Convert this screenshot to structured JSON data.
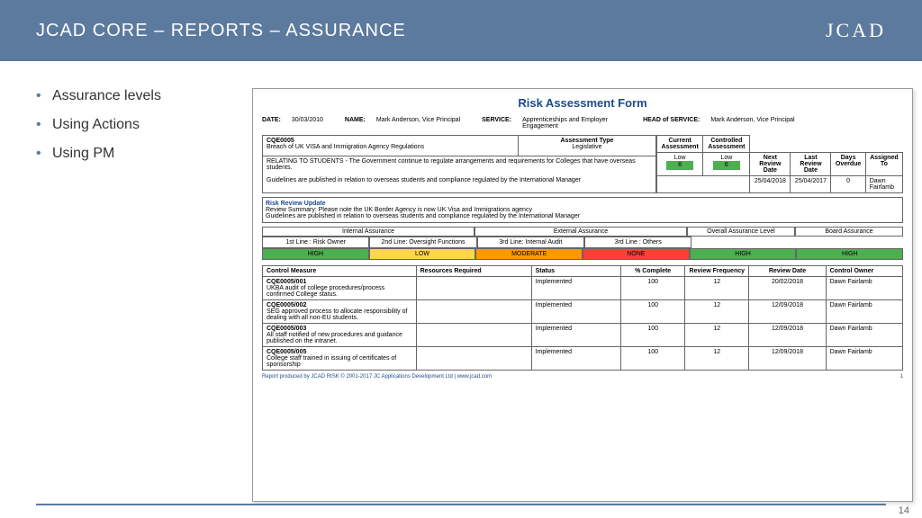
{
  "header": {
    "title": "JCAD CORE – REPORTS – ASSURANCE",
    "logo": "JCAD"
  },
  "bullets": [
    "Assurance levels",
    "Using Actions",
    "Using PM"
  ],
  "form": {
    "title": "Risk Assessment Form",
    "meta": {
      "date_label": "DATE:",
      "date": "30/03/2010",
      "name_label": "NAME:",
      "name": "Mark Anderson, Vice Principal",
      "service_label": "SERVICE:",
      "service": "Apprenticeships and Employer Engagement",
      "head_label": "HEAD of SERVICE:",
      "head": "Mark Anderson, Vice Principal"
    },
    "risk": {
      "code": "CQE0005",
      "desc": "Breach of UK VISA and Immigration Agency Regulations",
      "assessment_type_label": "Assessment Type",
      "assessment_type": "Legislative",
      "relating": "RELATING TO STUDENTS - The Government continue to regulate arrangements and requirements for Colleges that have overseas students.",
      "guidelines": "Guidelines are published in relation to overseas students and compliance regulated by the International Manager",
      "current_label": "Current Assessment",
      "current_val": "Low",
      "current_rag": "6",
      "controlled_label": "Controlled Assessment",
      "controlled_val": "Low",
      "controlled_rag": "6",
      "next_review_label": "Next Review Date",
      "next_review": "25/04/2018",
      "last_review_label": "Last Review Date",
      "last_review": "25/04/2017",
      "days_overdue_label": "Days Overdue",
      "days_overdue": "0",
      "assigned_label": "Assigned To",
      "assigned": "Dawn Fairlamb"
    },
    "review_update": {
      "header": "Risk Review Update",
      "line1": "Review Summary: Please note the UK Border Agency is now UK Visa and Immigrations agency",
      "line2": "Guidelines are published in relation to overseas students and compliance regulated by the International Manager"
    },
    "assurance": {
      "internal_label": "Internal Assurance",
      "external_label": "External Assurance",
      "overall_label": "Overall Assurance Level",
      "board_label": "Board Assurance",
      "lines": {
        "l1_label": "1st Line : Risk Owner",
        "l1_val": "HIGH",
        "l1_color": "green",
        "l2_label": "2nd Line: Oversight Functions",
        "l2_val": "LOW",
        "l2_color": "yellow",
        "l3_label": "3rd Line: Internal Audit",
        "l3_val": "MODERATE",
        "l3_color": "orange",
        "l4_label": "3rd Line : Others",
        "l4_val": "NONE",
        "l4_color": "red",
        "overall_val": "HIGH",
        "overall_color": "green",
        "board_val": "HIGH",
        "board_color": "green"
      }
    },
    "controls": {
      "headers": [
        "Control Measure",
        "Resources Required",
        "Status",
        "% Complete",
        "Review Frequency",
        "Review Date",
        "Control Owner"
      ],
      "rows": [
        {
          "code": "CQE0005/001",
          "desc": "UKBA audit of college procedures/process confirmed College status.",
          "res": "",
          "status": "Implemented",
          "pct": "100",
          "freq": "12",
          "date": "20/02/2018",
          "owner": "Dawn Fairlamb"
        },
        {
          "code": "CQE0005/002",
          "desc": "SEG approved process to allocate responsibility of dealing with all non-EU students.",
          "res": "",
          "status": "Implemented",
          "pct": "100",
          "freq": "12",
          "date": "12/09/2018",
          "owner": "Dawn Fairlamb"
        },
        {
          "code": "CQE0005/003",
          "desc": "All staff notified of new procedures and guidance published on the intranet.",
          "res": "",
          "status": "Implemented",
          "pct": "100",
          "freq": "12",
          "date": "12/09/2018",
          "owner": "Dawn Fairlamb"
        },
        {
          "code": "CQE0005/005",
          "desc": "College staff trained in issuing of certificates of sponsorship",
          "res": "",
          "status": "Implemented",
          "pct": "100",
          "freq": "12",
          "date": "12/09/2018",
          "owner": "Dawn Fairlamb"
        }
      ]
    },
    "footer": {
      "text": "Report produced by JCAD RISK © 2001-2017 JC Applications Development Ltd | www.jcad.com",
      "page": "1"
    }
  },
  "page_number": "14"
}
